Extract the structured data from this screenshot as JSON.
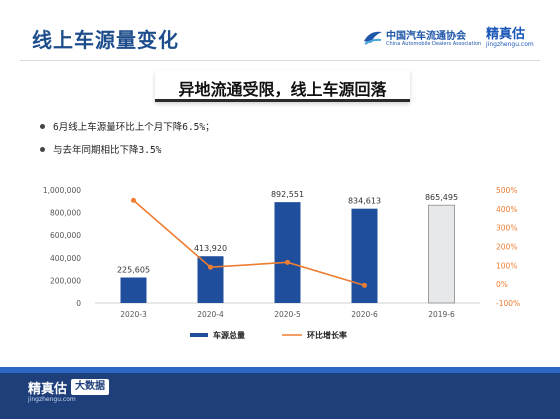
{
  "page": {
    "title": "线上车源量变化",
    "subtitle": "异地流通受限，线上车源回落",
    "bullets": [
      "6月线上车源量环比上个月下降6.5%；",
      "与去年同期相比下降3.5%"
    ]
  },
  "logos": {
    "cada_cn": "中国汽车流通协会",
    "cada_en": "China Automobile Dealers Association",
    "jzg_cn": "精真估",
    "jzg_en": "jingzhengu.com"
  },
  "footer": {
    "brand_cn": "精真估",
    "brand_en": "jingzhengu.com",
    "badge": "大数据"
  },
  "colors": {
    "brand_blue": "#1e4d8c",
    "bar_blue": "#1f4e9c",
    "bar_gray": "#e7e8ea",
    "line_orange": "#ed7d31"
  },
  "chart_data": {
    "type": "bar",
    "categories": [
      "2020-3",
      "2020-4",
      "2020-5",
      "2020-6",
      "2019-6"
    ],
    "series": [
      {
        "name": "车源总量",
        "type": "bar",
        "axis": "left",
        "values": [
          225605,
          413920,
          892551,
          834613,
          865495
        ],
        "labels": [
          "225,605",
          "413,920",
          "892,551",
          "834,613",
          "865,495"
        ]
      },
      {
        "name": "环比增长率",
        "type": "line",
        "axis": "right",
        "values": [
          445,
          90,
          116,
          -6.5,
          null
        ]
      }
    ],
    "y_left": {
      "min": 0,
      "max": 1000000,
      "ticks": [
        "0",
        "200,000",
        "400,000",
        "600,000",
        "800,000",
        "1,000,000"
      ]
    },
    "y_right": {
      "min": -100,
      "max": 500,
      "ticks": [
        "-100%",
        "0%",
        "100%",
        "200%",
        "300%",
        "400%",
        "500%"
      ]
    },
    "grid": false,
    "legend": "bottom"
  }
}
